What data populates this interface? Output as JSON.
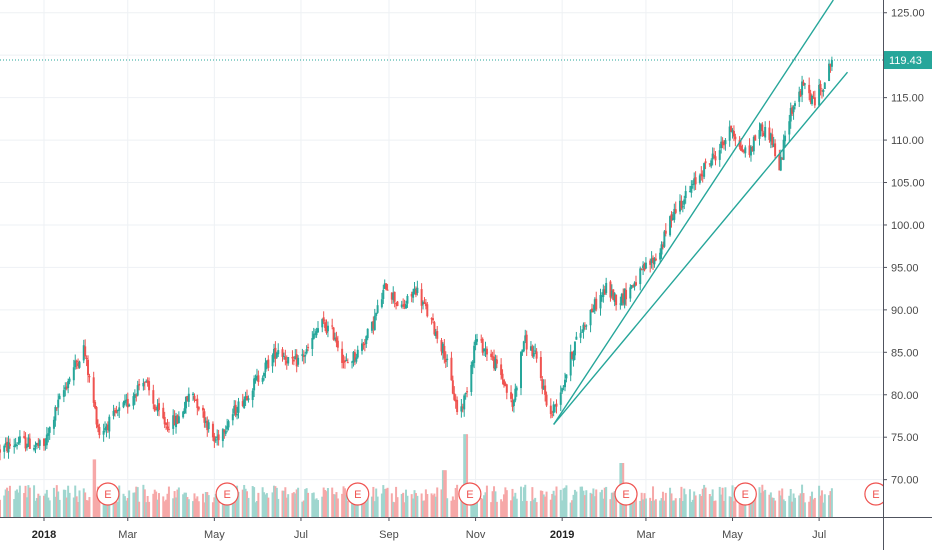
{
  "chart_data": {
    "type": "candlestick",
    "title": "",
    "x_axis": {
      "tick_labels": [
        "2018",
        "Mar",
        "May",
        "Jul",
        "Sep",
        "Nov",
        "2019",
        "Mar",
        "May",
        "Jul"
      ],
      "tick_dates": [
        "2018-01-01",
        "2018-03-01",
        "2018-05-01",
        "2018-07-01",
        "2018-09-01",
        "2018-11-01",
        "2019-01-01",
        "2019-03-01",
        "2019-05-01",
        "2019-07-01"
      ],
      "bold_labels": [
        "2018",
        "2019"
      ],
      "range": [
        "2017-12-01",
        "2019-08-15"
      ]
    },
    "y_axis": {
      "position": "right",
      "tick_labels": [
        "125.00",
        "120.00",
        "115.00",
        "110.00",
        "105.00",
        "100.00",
        "95.00",
        "90.00",
        "85.00",
        "80.00",
        "75.00",
        "70.00"
      ],
      "ticks": [
        125,
        120,
        115,
        110,
        105,
        100,
        95,
        90,
        85,
        80,
        75,
        70
      ],
      "range": [
        65.6,
        126.5
      ]
    },
    "grid": true,
    "last_price": {
      "value": 119.43,
      "label": "119.43",
      "color": "#26a69a",
      "line_style": "dotted"
    },
    "price_path": [
      [
        "2017-12-01",
        73.5
      ],
      [
        "2017-12-15",
        74.5
      ],
      [
        "2018-01-01",
        73.8
      ],
      [
        "2018-01-10",
        78.5
      ],
      [
        "2018-01-20",
        82.5
      ],
      [
        "2018-01-29",
        85.5
      ],
      [
        "2018-02-05",
        79.0
      ],
      [
        "2018-02-09",
        75.5
      ],
      [
        "2018-02-20",
        77.5
      ],
      [
        "2018-03-01",
        79.0
      ],
      [
        "2018-03-12",
        82.0
      ],
      [
        "2018-03-20",
        78.5
      ],
      [
        "2018-03-28",
        76.5
      ],
      [
        "2018-04-05",
        77.0
      ],
      [
        "2018-04-15",
        80.5
      ],
      [
        "2018-04-25",
        77.0
      ],
      [
        "2018-05-01",
        74.5
      ],
      [
        "2018-05-05",
        75.5
      ],
      [
        "2018-05-15",
        78.0
      ],
      [
        "2018-06-01",
        82.0
      ],
      [
        "2018-06-15",
        85.5
      ],
      [
        "2018-06-25",
        83.5
      ],
      [
        "2018-07-05",
        85.0
      ],
      [
        "2018-07-15",
        88.5
      ],
      [
        "2018-07-25",
        87.0
      ],
      [
        "2018-08-01",
        83.5
      ],
      [
        "2018-08-10",
        85.0
      ],
      [
        "2018-08-20",
        88.0
      ],
      [
        "2018-08-30",
        93.0
      ],
      [
        "2018-09-10",
        90.0
      ],
      [
        "2018-09-20",
        92.5
      ],
      [
        "2018-10-01",
        88.5
      ],
      [
        "2018-10-10",
        85.0
      ],
      [
        "2018-10-20",
        77.5
      ],
      [
        "2018-10-25",
        80.0
      ],
      [
        "2018-11-01",
        86.5
      ],
      [
        "2018-11-10",
        85.0
      ],
      [
        "2018-11-20",
        82.0
      ],
      [
        "2018-11-27",
        78.5
      ],
      [
        "2018-12-05",
        86.5
      ],
      [
        "2018-12-13",
        84.5
      ],
      [
        "2018-12-24",
        77.5
      ],
      [
        "2019-01-02",
        81.5
      ],
      [
        "2019-01-10",
        86.0
      ],
      [
        "2019-01-20",
        89.5
      ],
      [
        "2019-02-01",
        92.5
      ],
      [
        "2019-02-10",
        91.0
      ],
      [
        "2019-02-20",
        93.0
      ],
      [
        "2019-03-01",
        95.0
      ],
      [
        "2019-03-10",
        96.5
      ],
      [
        "2019-03-20",
        101.5
      ],
      [
        "2019-04-01",
        104.0
      ],
      [
        "2019-04-10",
        106.5
      ],
      [
        "2019-04-20",
        108.5
      ],
      [
        "2019-05-01",
        111.5
      ],
      [
        "2019-05-06",
        109.0
      ],
      [
        "2019-05-13",
        108.5
      ],
      [
        "2019-05-20",
        111.5
      ],
      [
        "2019-05-28",
        110.5
      ],
      [
        "2019-06-03",
        106.5
      ],
      [
        "2019-06-10",
        113.0
      ],
      [
        "2019-06-20",
        116.5
      ],
      [
        "2019-06-27",
        114.5
      ],
      [
        "2019-07-05",
        117.0
      ],
      [
        "2019-07-10",
        119.43
      ]
    ],
    "channel_lines": [
      {
        "from": [
          "2018-12-26",
          76.5
        ],
        "to": [
          "2019-07-11",
          126.5
        ],
        "color": "#26a69a"
      },
      {
        "from": [
          "2018-12-26",
          76.5
        ],
        "to": [
          "2019-07-21",
          118.0
        ],
        "color": "#26a69a"
      }
    ],
    "earnings_markers": {
      "label": "E",
      "dates": [
        "2018-02-15",
        "2018-05-10",
        "2018-08-10",
        "2018-10-28",
        "2019-02-15",
        "2019-05-10",
        "2019-08-10"
      ]
    },
    "volume": {
      "shown": true,
      "spikes": [
        [
          "2018-02-05",
          3.2
        ],
        [
          "2018-10-10",
          2.6
        ],
        [
          "2018-10-25",
          4.6
        ],
        [
          "2019-02-12",
          3.0
        ]
      ]
    },
    "colors": {
      "up": "#26a69a",
      "down": "#ef5350",
      "volume_up": "#9fd6cf",
      "volume_down": "#f6a8a8",
      "grid": "#eef1f4",
      "axis_text": "#4a4a4a"
    }
  }
}
